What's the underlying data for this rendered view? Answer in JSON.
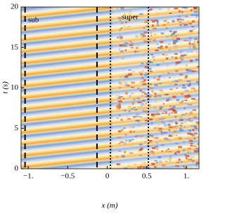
{
  "chart_data": {
    "type": "heatmap",
    "xlabel": "x (m)",
    "ylabel": "t (s)",
    "annotations": [
      "sub",
      "super"
    ],
    "xlim": [
      -1.09,
      1.16
    ],
    "ylim": [
      0,
      20
    ],
    "xticks": [
      {
        "value": -1,
        "label": "−1."
      },
      {
        "value": -0.5,
        "label": "−0.5"
      },
      0,
      0.5,
      {
        "value": 1,
        "label": "1."
      }
    ],
    "yticks": [
      0,
      5,
      10,
      15,
      20
    ],
    "vlines": [
      {
        "x": -1.04,
        "style": "dashed"
      },
      {
        "x": -0.13,
        "style": "dashed"
      },
      {
        "x": 0.04,
        "style": "dotted"
      },
      {
        "x": 0.52,
        "style": "dotted"
      }
    ]
  }
}
